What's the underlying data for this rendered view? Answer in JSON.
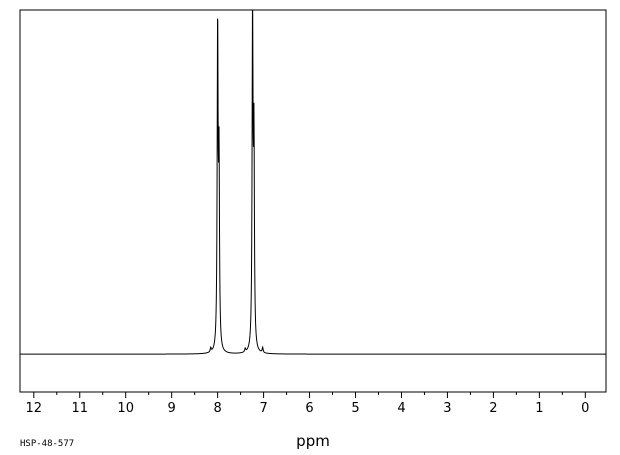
{
  "chart_data": {
    "type": "line",
    "title": "",
    "xlabel": "ppm",
    "ylabel": "",
    "xlim": [
      12.3,
      -0.45
    ],
    "x_reversed": true,
    "x_ticks": [
      12,
      11,
      10,
      9,
      8,
      7,
      6,
      5,
      4,
      3,
      2,
      1,
      0
    ],
    "x_minor_step": 0.5,
    "grid": false,
    "legend": "none",
    "baseline": 0,
    "ylim": [
      -0.11,
      1.0
    ],
    "peaks": [
      {
        "ppm": 8.0,
        "height": 0.94
      },
      {
        "ppm": 7.97,
        "height": 0.53
      },
      {
        "ppm": 7.24,
        "height": 0.99
      },
      {
        "ppm": 7.21,
        "height": 0.59
      },
      {
        "ppm": 8.15,
        "height": 0.012
      },
      {
        "ppm": 7.4,
        "height": 0.01
      },
      {
        "ppm": 7.02,
        "height": 0.015
      }
    ],
    "line_color": "#000000",
    "sample_code": "HSP-48-577"
  }
}
